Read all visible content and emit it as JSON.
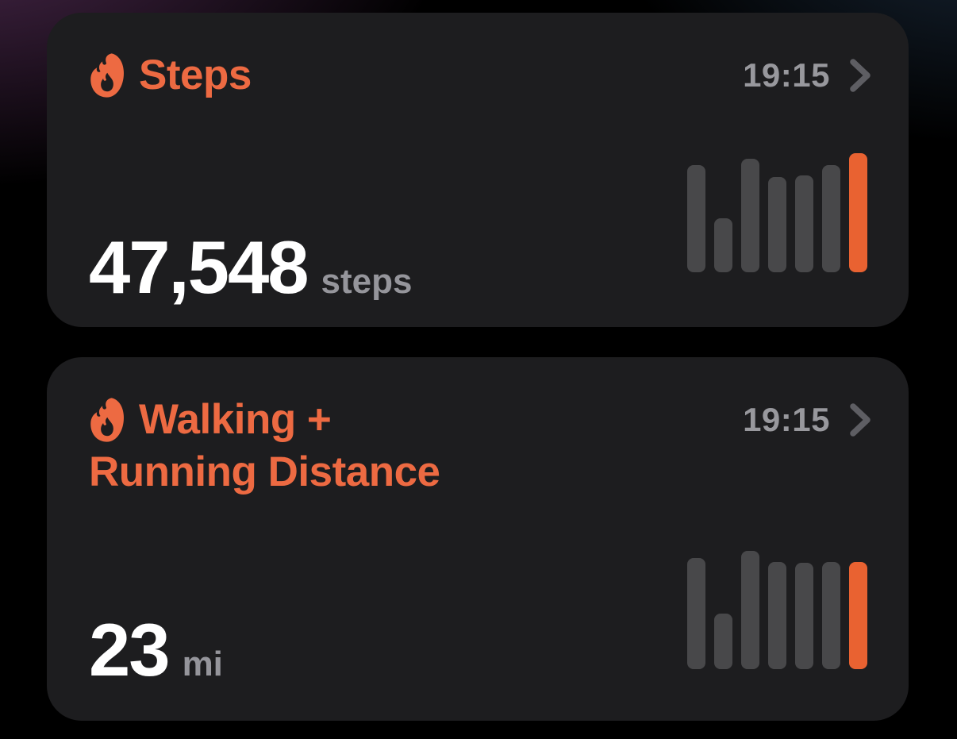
{
  "screen": {
    "type": "ios-health-widget-stack",
    "background": {
      "base": "#000000",
      "top_left_glow": "#522C54",
      "top_right_glow": "#1C2C3E"
    }
  },
  "colors": {
    "card_background": "#1D1D1F",
    "accent_orange": "#ED6A42",
    "bar_highlight_orange": "#E96231",
    "bar_gray": "#48484A",
    "value_white": "#FFFFFF",
    "unit_gray": "#95959B",
    "time_gray": "#98989D",
    "chevron_gray": "#5E5E63"
  },
  "cards": [
    {
      "icon": "flame-icon",
      "title_line1": "Steps",
      "time": "19:15",
      "value": "47,548",
      "unit": "steps",
      "chart": {
        "type": "bar",
        "bar_count": 7,
        "values_pct": [
          89,
          45,
          94,
          79,
          80,
          89,
          99
        ],
        "highlight_index": 6,
        "highlight_meaning": "current-day"
      }
    },
    {
      "icon": "flame-icon",
      "title_line1": "Walking +",
      "title_line2": "Running Distance",
      "time": "19:15",
      "value": "23",
      "unit": "mi",
      "chart": {
        "type": "bar",
        "bar_count": 7,
        "values_pct": [
          92,
          46,
          98,
          89,
          88,
          89,
          89
        ],
        "highlight_index": 6,
        "highlight_meaning": "current-day"
      }
    }
  ]
}
